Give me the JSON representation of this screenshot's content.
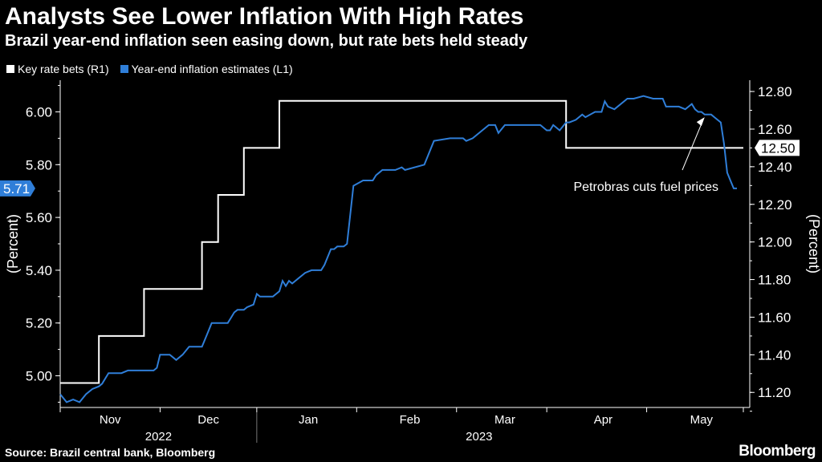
{
  "chart_data": {
    "type": "line",
    "title": "Analysts See Lower Inflation With High Rates",
    "subtitle": "Brazil year-end inflation seen easing down, but rate bets held steady",
    "left_axis": {
      "label": "(Percent)",
      "ticks": [
        "5.00",
        "5.20",
        "5.40",
        "5.60",
        "5.80",
        "6.00"
      ],
      "tick_values": [
        5.0,
        5.2,
        5.4,
        5.6,
        5.8,
        6.0
      ],
      "range": [
        4.88,
        6.12
      ]
    },
    "right_axis": {
      "label": "(Percent)",
      "ticks": [
        "11.20",
        "11.40",
        "11.60",
        "11.80",
        "12.00",
        "12.20",
        "12.40",
        "12.60",
        "12.80"
      ],
      "tick_values": [
        11.2,
        11.4,
        11.6,
        11.8,
        12.0,
        12.2,
        12.4,
        12.6,
        12.8
      ],
      "range": [
        11.12,
        12.86
      ]
    },
    "x_axis": {
      "months": [
        "Nov",
        "Dec",
        "Jan",
        "Feb",
        "Mar",
        "Apr",
        "May"
      ],
      "month_positions": [
        15.5,
        46,
        77,
        108.5,
        138,
        168.5,
        199
      ],
      "month_boundaries": [
        0,
        31,
        61,
        92,
        123,
        151,
        182,
        212
      ],
      "years": [
        {
          "label": "2022",
          "center": 30.5
        },
        {
          "label": "2023",
          "center": 130
        }
      ],
      "year_boundary": 61,
      "range": [
        0,
        212
      ]
    },
    "series": [
      {
        "name": "Key rate bets (R1)",
        "color": "#ffffff",
        "axis": "right",
        "step": true,
        "x": [
          0,
          12,
          12,
          26,
          26,
          44,
          44,
          49,
          49,
          57,
          57,
          68,
          68,
          91,
          91,
          157,
          157,
          212
        ],
        "values": [
          11.25,
          11.25,
          11.5,
          11.5,
          11.75,
          11.75,
          12.0,
          12.0,
          12.25,
          12.25,
          12.5,
          12.5,
          12.75,
          12.75,
          12.75,
          12.75,
          12.5,
          12.5
        ]
      },
      {
        "name": "Year-end inflation estimates (L1)",
        "color": "#2f7ed8",
        "axis": "left",
        "x": [
          0,
          2,
          4,
          6,
          8,
          10,
          12,
          13,
          15,
          17,
          19,
          21,
          23,
          25,
          26,
          27,
          29,
          30,
          31,
          32,
          34,
          36,
          38,
          40,
          41,
          42,
          43,
          44,
          46,
          47,
          49,
          51,
          52,
          53,
          54,
          55,
          56,
          57,
          58,
          60,
          61,
          62,
          64,
          66,
          68,
          69,
          70,
          71,
          72,
          73,
          74,
          75,
          76,
          78,
          79,
          81,
          82,
          84,
          85,
          86,
          87,
          88,
          89,
          91,
          94,
          95,
          96,
          97,
          98,
          99,
          100,
          101,
          102,
          104,
          106,
          107,
          113,
          116,
          121,
          122,
          123,
          124,
          125,
          126,
          128,
          133,
          135,
          136,
          138,
          140,
          142,
          144,
          146,
          149,
          151,
          152,
          153,
          155,
          157,
          158,
          160,
          162,
          163,
          166,
          168,
          169,
          170,
          172,
          176,
          178,
          181,
          184,
          187,
          188,
          190,
          192,
          194,
          195,
          196,
          197,
          198,
          199,
          200,
          202,
          203,
          205,
          206,
          207,
          208,
          209,
          210
        ],
        "values": [
          4.93,
          4.9,
          4.91,
          4.9,
          4.93,
          4.95,
          4.96,
          4.97,
          5.01,
          5.01,
          5.01,
          5.02,
          5.02,
          5.02,
          5.02,
          5.02,
          5.02,
          5.03,
          5.08,
          5.08,
          5.08,
          5.06,
          5.08,
          5.11,
          5.11,
          5.11,
          5.11,
          5.11,
          5.17,
          5.2,
          5.2,
          5.2,
          5.2,
          5.22,
          5.24,
          5.25,
          5.25,
          5.25,
          5.26,
          5.27,
          5.31,
          5.3,
          5.3,
          5.3,
          5.32,
          5.36,
          5.34,
          5.36,
          5.35,
          5.36,
          5.37,
          5.38,
          5.39,
          5.4,
          5.4,
          5.4,
          5.42,
          5.48,
          5.48,
          5.49,
          5.49,
          5.49,
          5.5,
          5.72,
          5.74,
          5.74,
          5.74,
          5.74,
          5.76,
          5.77,
          5.78,
          5.78,
          5.78,
          5.78,
          5.79,
          5.78,
          5.8,
          5.89,
          5.9,
          5.9,
          5.9,
          5.9,
          5.9,
          5.89,
          5.9,
          5.95,
          5.95,
          5.92,
          5.95,
          5.95,
          5.95,
          5.95,
          5.95,
          5.95,
          5.93,
          5.93,
          5.95,
          5.93,
          5.96,
          5.96,
          5.97,
          5.99,
          5.98,
          6.0,
          6.0,
          6.04,
          6.02,
          6.01,
          6.05,
          6.05,
          6.06,
          6.05,
          6.05,
          6.02,
          6.02,
          6.02,
          6.01,
          6.02,
          6.03,
          6.01,
          6.0,
          6.0,
          5.99,
          5.99,
          5.98,
          5.96,
          5.88,
          5.77,
          5.74,
          5.71,
          5.71
        ]
      }
    ],
    "end_labels": [
      {
        "series": "Year-end inflation estimates (L1)",
        "text": "5.71",
        "side": "left"
      },
      {
        "series": "Key rate bets (R1)",
        "text": "12.50",
        "side": "right"
      }
    ],
    "annotation": {
      "text": "Petrobras cuts fuel prices",
      "arrow_to_x": 200
    }
  },
  "footer": {
    "source": "Source: Brazil central bank, Bloomberg",
    "brand": "Bloomberg"
  },
  "colors": {
    "background": "#000000",
    "inflation": "#2f7ed8",
    "rate": "#ffffff",
    "axis": "#ffffff"
  }
}
